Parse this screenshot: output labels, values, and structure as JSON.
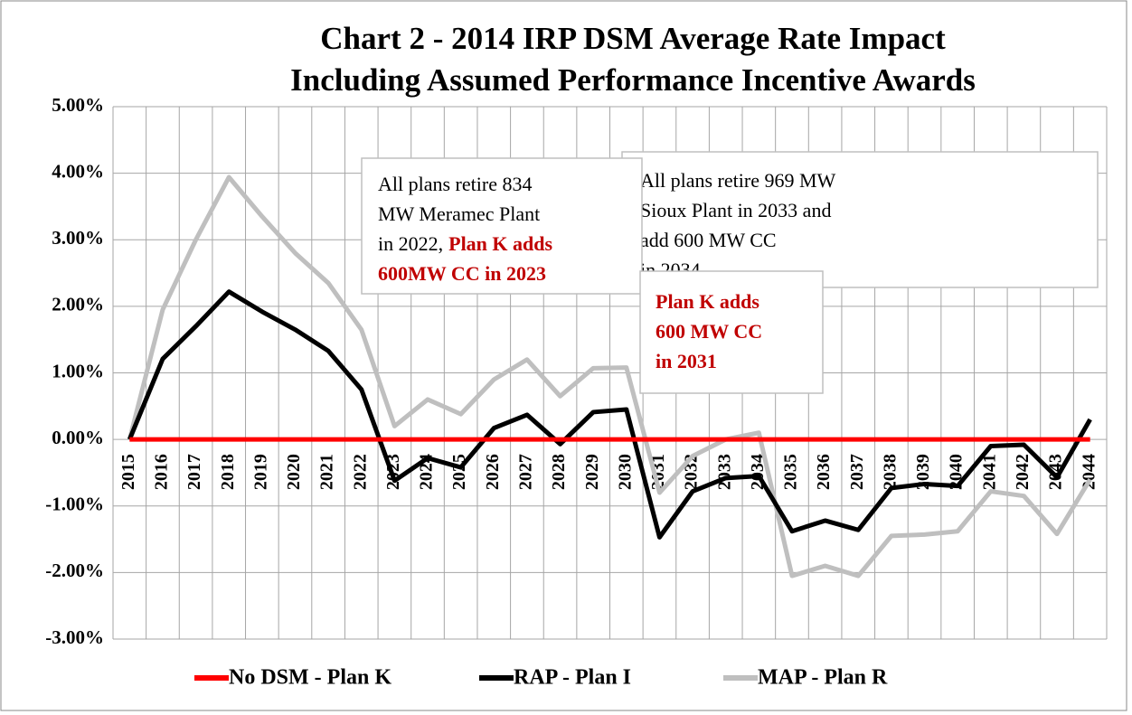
{
  "chart_data": {
    "type": "line",
    "title": [
      "Chart 2 - 2014 IRP DSM Average Rate Impact",
      "Including Assumed Performance Incentive Awards"
    ],
    "categories": [
      "2015",
      "2016",
      "2017",
      "2018",
      "2019",
      "2020",
      "2021",
      "2022",
      "2023",
      "2024",
      "2025",
      "2026",
      "2027",
      "2028",
      "2029",
      "2030",
      "2031",
      "2032",
      "2033",
      "2034",
      "2035",
      "2036",
      "2037",
      "2038",
      "2039",
      "2040",
      "2041",
      "2042",
      "2043",
      "2044"
    ],
    "ylim": [
      -3,
      5
    ],
    "yticks": [
      {
        "value": 5,
        "label": "5.00%"
      },
      {
        "value": 4,
        "label": "4.00%"
      },
      {
        "value": 3,
        "label": "3.00%"
      },
      {
        "value": 2,
        "label": "2.00%"
      },
      {
        "value": 1,
        "label": "1.00%"
      },
      {
        "value": 0,
        "label": "0.00%"
      },
      {
        "value": -1,
        "label": "-1.00%"
      },
      {
        "value": -2,
        "label": "-2.00%"
      },
      {
        "value": -3,
        "label": "-3.00%"
      }
    ],
    "grid": true,
    "legend": "bottom",
    "series": [
      {
        "name": "No DSM - Plan K",
        "color": "#ff0000",
        "values": [
          0,
          0,
          0,
          0,
          0,
          0,
          0,
          0,
          0,
          0,
          0,
          0,
          0,
          0,
          0,
          0,
          0,
          0,
          0,
          0,
          0,
          0,
          0,
          0,
          0,
          0,
          0,
          0,
          0,
          0
        ]
      },
      {
        "name": "RAP - Plan I",
        "color": "#000000",
        "values": [
          0,
          1.21,
          1.7,
          2.22,
          1.92,
          1.65,
          1.33,
          0.75,
          -0.62,
          -0.28,
          -0.42,
          0.17,
          0.37,
          -0.07,
          0.41,
          0.45,
          -1.47,
          -0.78,
          -0.58,
          -0.55,
          -1.38,
          -1.22,
          -1.36,
          -0.73,
          -0.67,
          -0.7,
          -0.1,
          -0.08,
          -0.57,
          0.3
        ]
      },
      {
        "name": "MAP - Plan R",
        "color": "#bfbfbf",
        "values": [
          0,
          1.95,
          3.0,
          3.94,
          3.35,
          2.8,
          2.35,
          1.65,
          0.2,
          0.6,
          0.38,
          0.9,
          1.2,
          0.65,
          1.07,
          1.08,
          -0.8,
          -0.25,
          0.0,
          0.1,
          -2.05,
          -1.9,
          -2.05,
          -1.45,
          -1.43,
          -1.38,
          -0.78,
          -0.85,
          -1.42,
          -0.6
        ]
      }
    ],
    "annotations": [
      {
        "lines": [
          [
            {
              "text": "All plans retire 969 MW"
            }
          ],
          [
            {
              "text": "Sioux Plant in 2033 and"
            }
          ],
          [
            {
              "text": "add 600 MW CC"
            }
          ],
          [
            {
              "text": "in 2034"
            }
          ]
        ]
      },
      {
        "lines": [
          [
            {
              "text": "All plans retire 834"
            }
          ],
          [
            {
              "text": "MW Meramec Plant"
            }
          ],
          [
            {
              "text": "in 2022,"
            },
            {
              "text": "Plan K adds",
              "color": "#c00000",
              "bold": true
            }
          ],
          [
            {
              "text": "600MW CC in 2023",
              "color": "#c00000",
              "bold": true
            }
          ]
        ]
      },
      {
        "lines": [
          [
            {
              "text": "Plan K adds",
              "color": "#c00000",
              "bold": true
            }
          ],
          [
            {
              "text": "600 MW CC",
              "color": "#c00000",
              "bold": true
            }
          ],
          [
            {
              "text": "in 2031",
              "color": "#c00000",
              "bold": true
            }
          ]
        ]
      }
    ]
  }
}
